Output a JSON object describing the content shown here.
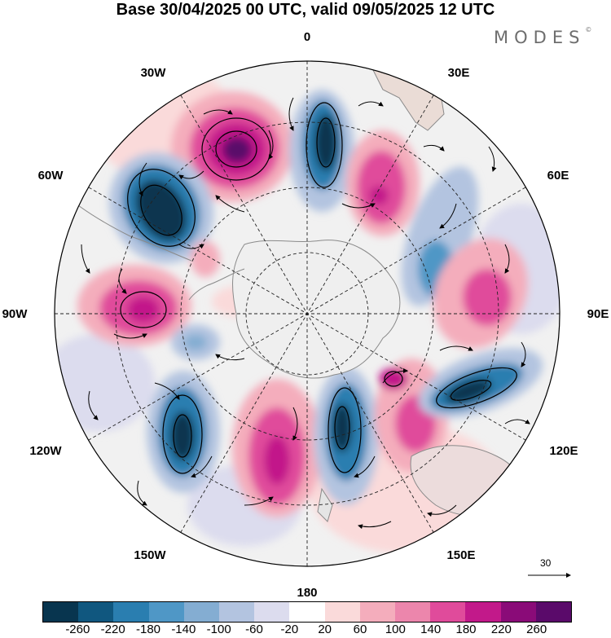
{
  "title": "Base 30/04/2025 00 UTC, valid 09/05/2025 12 UTC",
  "brand": "MODES",
  "brand_mark": "©",
  "map": {
    "projection": "south polar stereographic",
    "longitude_labels": {
      "top": "0",
      "top_right": "30E",
      "upper_right": "60E",
      "right": "90E",
      "lower_right": "120E",
      "bottom_right": "150E",
      "bottom": "180",
      "bottom_left": "150W",
      "lower_left": "120W",
      "left": "90W",
      "upper_left": "60W",
      "top_left": "30W"
    },
    "features": [
      "shaded anomaly field",
      "wind vectors",
      "black contours",
      "dashed lat/lon grid",
      "coastlines"
    ]
  },
  "reference_vector": {
    "value": "30"
  },
  "colorbar": {
    "ticks": [
      "-260",
      "-220",
      "-180",
      "-140",
      "-100",
      "-60",
      "-20",
      "20",
      "60",
      "100",
      "140",
      "180",
      "220",
      "260"
    ],
    "colors": [
      "#08354f",
      "#10577f",
      "#2a7eb0",
      "#4f97c6",
      "#84add2",
      "#b3c4e0",
      "#dcdcee",
      "#ffffff",
      "#fadada",
      "#f4adbc",
      "#ec86ac",
      "#e04b9b",
      "#c2198a",
      "#8a0b78",
      "#5a0a6a"
    ]
  }
}
